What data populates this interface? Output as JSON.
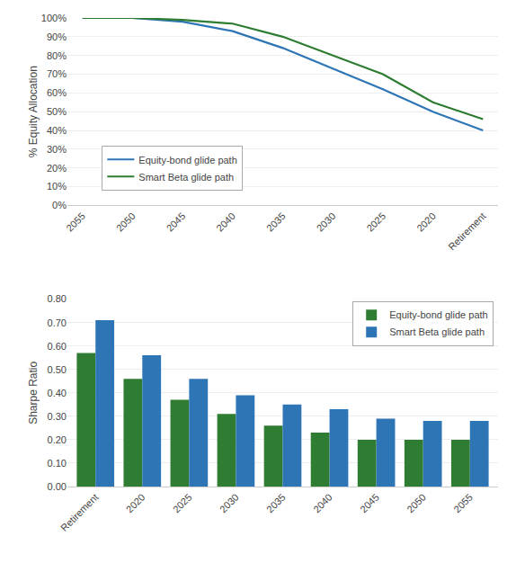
{
  "chart_data": [
    {
      "type": "line",
      "categories": [
        "2055",
        "2050",
        "2045",
        "2040",
        "2035",
        "2030",
        "2025",
        "2020",
        "Retirement"
      ],
      "series": [
        {
          "name": "Equity-bond glide path",
          "color": "#2e75b6",
          "values": [
            1.0,
            1.0,
            0.98,
            0.93,
            0.84,
            0.73,
            0.62,
            0.5,
            0.4
          ]
        },
        {
          "name": "Smart Beta glide path",
          "color": "#2e7d32",
          "values": [
            1.0,
            1.0,
            0.99,
            0.97,
            0.9,
            0.8,
            0.7,
            0.55,
            0.46
          ]
        }
      ],
      "y_label": "% Equity Allocation",
      "ylim": [
        0,
        1.0
      ],
      "yticks": [
        {
          "value": 0.0,
          "label": "0%"
        },
        {
          "value": 0.1,
          "label": "10%"
        },
        {
          "value": 0.2,
          "label": "20%"
        },
        {
          "value": 0.3,
          "label": "30%"
        },
        {
          "value": 0.4,
          "label": "40%"
        },
        {
          "value": 0.5,
          "label": "50%"
        },
        {
          "value": 0.6,
          "label": "60%"
        },
        {
          "value": 0.7,
          "label": "70%"
        },
        {
          "value": 0.8,
          "label": "80%"
        },
        {
          "value": 0.9,
          "label": "90%"
        },
        {
          "value": 1.0,
          "label": "100%"
        }
      ],
      "grid": true,
      "legend": "lower left"
    },
    {
      "type": "bar",
      "categories": [
        "Retirement",
        "2020",
        "2025",
        "2030",
        "2035",
        "2040",
        "2045",
        "2050",
        "2055"
      ],
      "series": [
        {
          "name": "Equity-bond glide path",
          "color": "#2e7d32",
          "values": [
            0.57,
            0.46,
            0.37,
            0.31,
            0.26,
            0.23,
            0.2,
            0.2,
            0.2
          ]
        },
        {
          "name": "Smart Beta glide path",
          "color": "#2e75b6",
          "values": [
            0.71,
            0.56,
            0.46,
            0.39,
            0.35,
            0.33,
            0.29,
            0.28,
            0.28
          ]
        }
      ],
      "y_label": "Sharpe Ratio",
      "ylim": [
        0,
        0.8
      ],
      "yticks": [
        {
          "value": 0.0,
          "label": "0.00"
        },
        {
          "value": 0.1,
          "label": "0.10"
        },
        {
          "value": 0.2,
          "label": "0.20"
        },
        {
          "value": 0.3,
          "label": "0.30"
        },
        {
          "value": 0.4,
          "label": "0.40"
        },
        {
          "value": 0.5,
          "label": "0.50"
        },
        {
          "value": 0.6,
          "label": "0.60"
        },
        {
          "value": 0.7,
          "label": "0.70"
        },
        {
          "value": 0.8,
          "label": "0.80"
        }
      ],
      "grid": true,
      "legend": "upper right"
    }
  ]
}
